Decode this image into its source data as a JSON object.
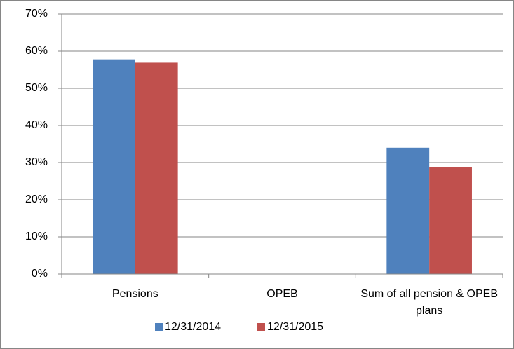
{
  "chart_data": {
    "type": "bar",
    "categories": [
      "Pensions",
      "OPEB",
      "Sum of all pension & OPEB plans"
    ],
    "series": [
      {
        "name": "12/31/2014",
        "color": "#4f81bd",
        "values": [
          57.8,
          0,
          34.0
        ]
      },
      {
        "name": "12/31/2015",
        "color": "#c0504d",
        "values": [
          56.9,
          0,
          28.8
        ]
      }
    ],
    "ylim": [
      0,
      70
    ],
    "yticks": [
      {
        "value": 0,
        "label": "0%"
      },
      {
        "value": 10,
        "label": "10%"
      },
      {
        "value": 20,
        "label": "20%"
      },
      {
        "value": 30,
        "label": "30%"
      },
      {
        "value": 40,
        "label": "40%"
      },
      {
        "value": 50,
        "label": "50%"
      },
      {
        "value": 60,
        "label": "60%"
      },
      {
        "value": 70,
        "label": "70%"
      }
    ],
    "grid": true,
    "legend": "bottom"
  }
}
